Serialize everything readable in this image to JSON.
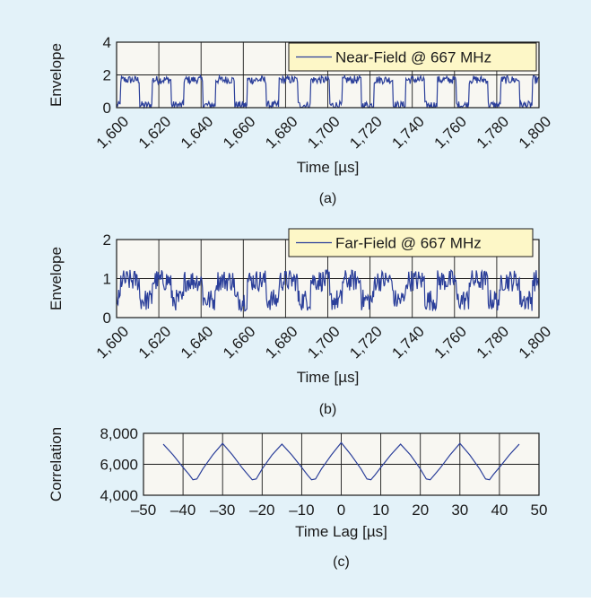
{
  "colors": {
    "background": "#e3f2f9",
    "plot_bg": "#f8f7f2",
    "series": "#2b3f9a",
    "legend_bg": "#fdf7c7",
    "grid": "#1a1a1a"
  },
  "chart_data": [
    {
      "type": "line",
      "caption": "(a)",
      "xlabel": "Time [µs]",
      "ylabel": "Envelope",
      "xlim": [
        1600,
        1800
      ],
      "ylim": [
        0,
        4
      ],
      "xticks": [
        "1,600",
        "1,620",
        "1,640",
        "1,660",
        "1,680",
        "1,700",
        "1,720",
        "1,740",
        "1,760",
        "1,780",
        "1,800"
      ],
      "yticks": [
        "0",
        "2",
        "4"
      ],
      "grid": true,
      "legend_position": "top-right",
      "signal": {
        "period": 15,
        "high": 1.7,
        "low": 0.15,
        "noise": 0.25,
        "samples": 600
      },
      "series": [
        {
          "name": "Near-Field @ 667 MHz"
        }
      ]
    },
    {
      "type": "line",
      "caption": "(b)",
      "xlabel": "Time [µs]",
      "ylabel": "Envelope",
      "xlim": [
        1600,
        1800
      ],
      "ylim": [
        0,
        2
      ],
      "xticks": [
        "1,600",
        "1,620",
        "1,640",
        "1,660",
        "1,680",
        "1,700",
        "1,720",
        "1,740",
        "1,760",
        "1,780",
        "1,800"
      ],
      "yticks": [
        "0",
        "1",
        "2"
      ],
      "grid": true,
      "legend_position": "top-right",
      "signal": {
        "period": 15,
        "high": 0.95,
        "low": 0.45,
        "noise": 0.28,
        "samples": 600
      },
      "series": [
        {
          "name": "Far-Field @ 667 MHz"
        }
      ]
    },
    {
      "type": "line",
      "caption": "(c)",
      "xlabel": "Time Lag [µs]",
      "ylabel": "Correlation",
      "xlim": [
        -50,
        50
      ],
      "ylim": [
        4000,
        8000
      ],
      "xticks": [
        "–50",
        "–40",
        "–30",
        "–20",
        "–10",
        "0",
        "10",
        "20",
        "30",
        "40",
        "50"
      ],
      "yticks": [
        "4,000",
        "6,000",
        "8,000"
      ],
      "grid": true,
      "series": [
        {
          "x": [
            -45,
            -42.5,
            -40,
            -38.5,
            -37.5,
            -36.5,
            -35,
            -32.5,
            -30,
            -27.5,
            -25,
            -23.5,
            -22.5,
            -21.5,
            -20,
            -17.5,
            -15,
            -12.5,
            -10,
            -8.5,
            -7.5,
            -6.5,
            -5,
            -2.5,
            0,
            2.5,
            5,
            6.5,
            7.5,
            8.5,
            10,
            12.5,
            15,
            17.5,
            20,
            21.5,
            22.5,
            23.5,
            25,
            27.5,
            30,
            32.5,
            35,
            36.5,
            37.5,
            38.5,
            40,
            42.5,
            45
          ],
          "y": [
            7300,
            6600,
            5800,
            5350,
            5000,
            5050,
            5700,
            6600,
            7350,
            6600,
            5750,
            5300,
            5000,
            5050,
            5700,
            6600,
            7300,
            6600,
            5800,
            5300,
            5000,
            5050,
            5700,
            6600,
            7400,
            6600,
            5700,
            5050,
            5000,
            5300,
            5800,
            6600,
            7300,
            6600,
            5700,
            5050,
            5000,
            5300,
            5750,
            6600,
            7350,
            6600,
            5700,
            5050,
            5000,
            5350,
            5800,
            6600,
            7300
          ]
        }
      ]
    }
  ]
}
